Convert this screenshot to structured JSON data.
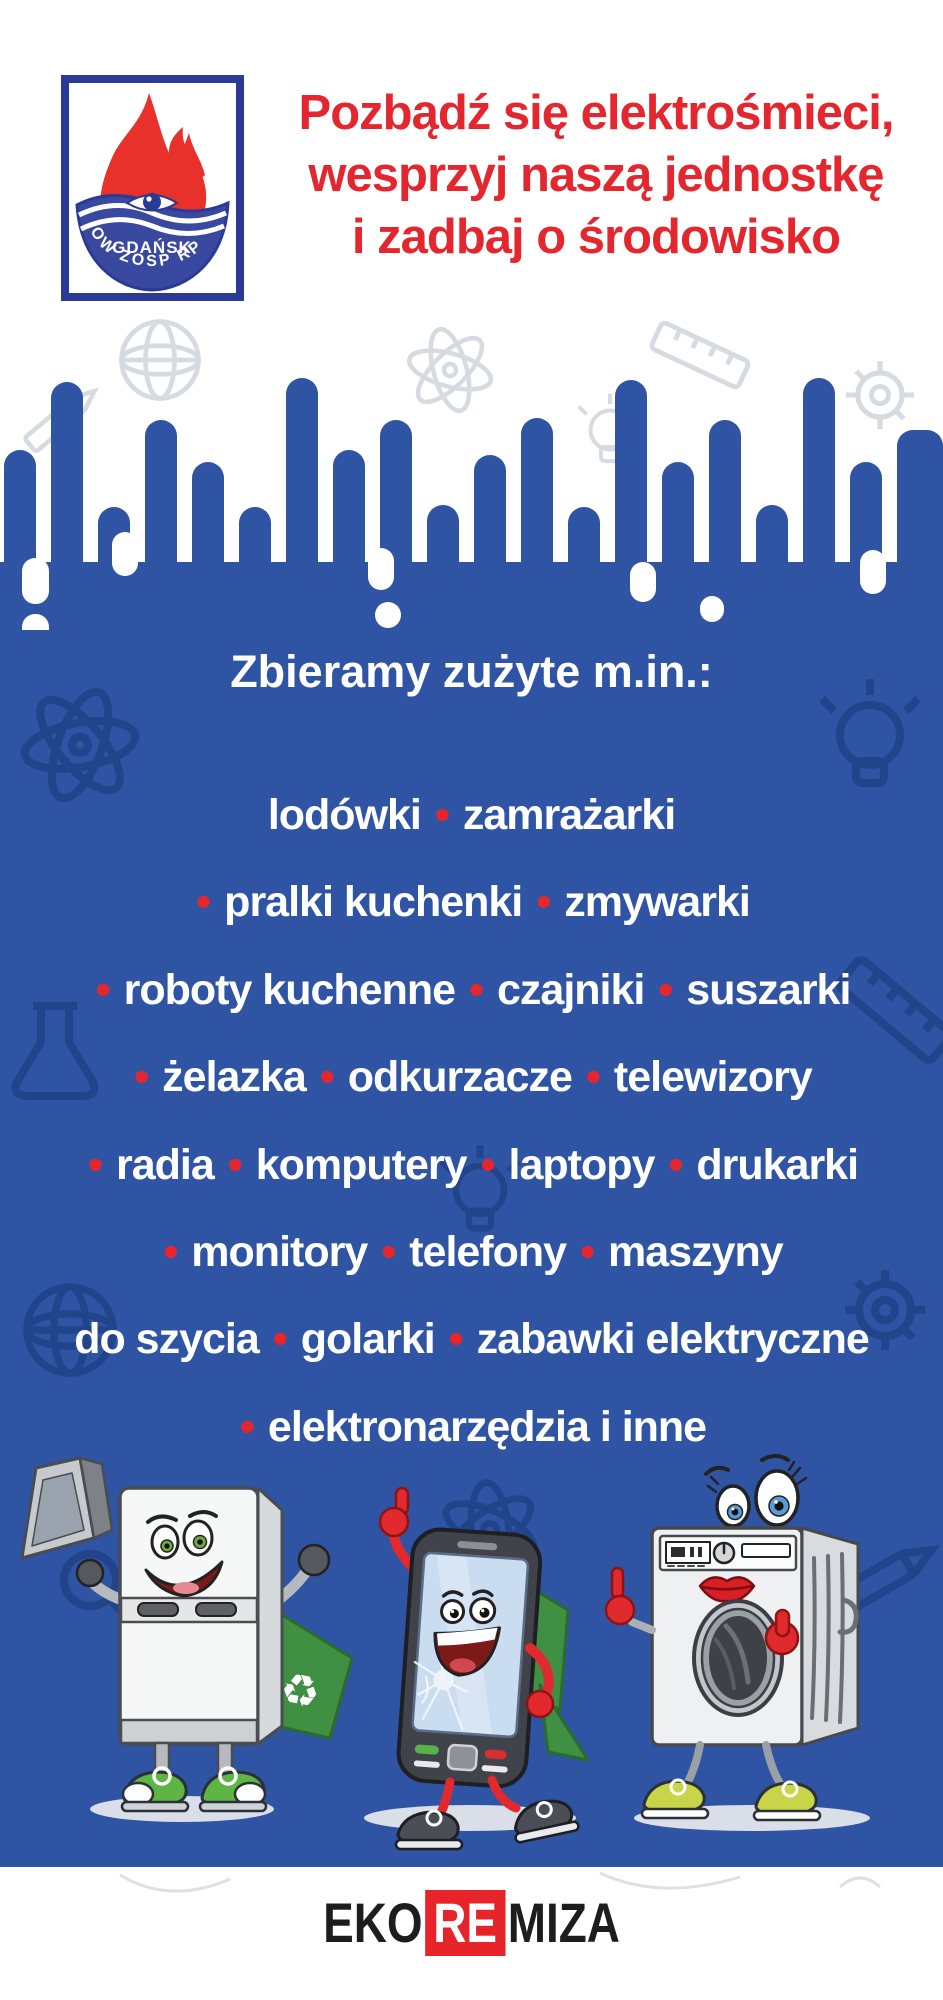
{
  "colors": {
    "page_blue": "#2e54a3",
    "accent_red": "#e4272e",
    "logo_navy": "#2b3a96",
    "logo_flame_red": "#e8312a",
    "brand_box_red": "#e8242b",
    "cape_green": "#3f9043",
    "text_white": "#ffffff"
  },
  "header": {
    "logo": {
      "city": "GDAŃSK",
      "org": "OW ZOSP RP"
    },
    "title_lines": [
      "Pozbądź się elektrośmieci,",
      "wesprzyj naszą jednostkę",
      "i zadbaj o środowisko"
    ]
  },
  "items_section": {
    "heading": "Zbieramy zużyte m.in.:",
    "lines": [
      "lodówki • zamrażarki",
      "• pralki kuchenki • zmywarki",
      "• roboty kuchenne • czajniki • suszarki",
      "• żelazka • odkurzacze • telewizory",
      "• radia • komputery • laptopy • drukarki",
      "• monitory • telefony • maszyny",
      "do szycia • golarki • zabawki elektryczne",
      "• elektronarzędzia i inne"
    ]
  },
  "mascots": {
    "description": [
      "fridge-with-laptop-and-recycle-cape",
      "broken-phone-thumbs-up",
      "washing-machine-pointing"
    ]
  },
  "footer": {
    "brand": {
      "part1": "EKO",
      "part2": "RE",
      "part3": "MIZA"
    }
  }
}
